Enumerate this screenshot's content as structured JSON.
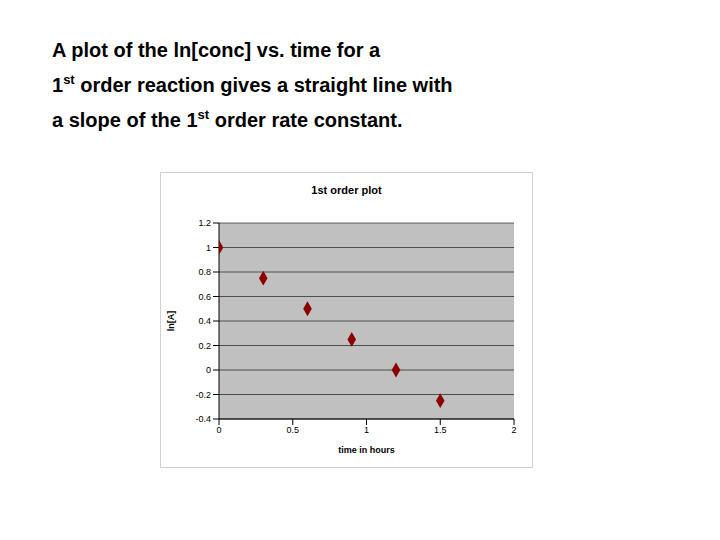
{
  "heading": [
    "A plot of the ln[conc] vs. time for a",
    "1st order reaction gives a straight line with",
    "a slope of the 1st order rate constant."
  ],
  "chart_data": {
    "type": "scatter",
    "title": "1st order plot",
    "x_label": "time in hours",
    "y_label": "ln[A]",
    "x": [
      0,
      0.3,
      0.6,
      0.9,
      1.2,
      1.5
    ],
    "values": [
      1,
      0.75,
      0.5,
      0.25,
      0,
      -0.25
    ],
    "color": "#8b0000",
    "marker": "diamond",
    "xlim": [
      0,
      2
    ],
    "xticks": [
      0,
      0.5,
      1,
      1.5,
      2
    ],
    "ylim": [
      -0.4,
      1.2
    ],
    "yticks": [
      -0.4,
      -0.2,
      0,
      0.2,
      0.4,
      0.6,
      0.8,
      1,
      1.2
    ],
    "grid": true
  }
}
